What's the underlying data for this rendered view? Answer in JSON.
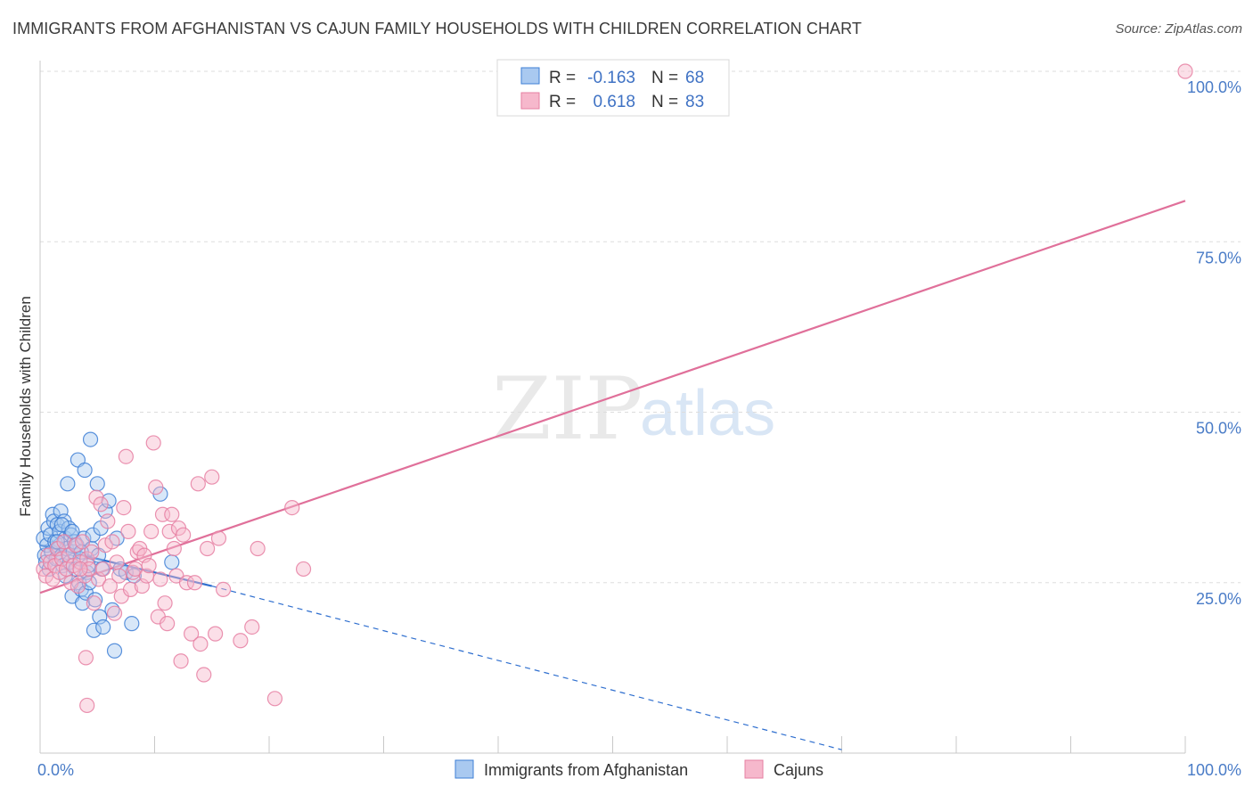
{
  "title": "IMMIGRANTS FROM AFGHANISTAN VS CAJUN FAMILY HOUSEHOLDS WITH CHILDREN CORRELATION CHART",
  "source": "Source: ZipAtlas.com",
  "watermark": {
    "zip": "ZIP",
    "atlas": "atlas"
  },
  "colors": {
    "blue_fill": "#a9c9f0",
    "blue_stroke": "#3e7fd6",
    "blue_line": "#2f6fcf",
    "pink_fill": "#f6b8cc",
    "pink_stroke": "#e67fa2",
    "pink_line": "#e0709a",
    "grid": "#dddddd",
    "tick": "#4a7cc7"
  },
  "legend": {
    "rows": [
      {
        "r_label": "R =",
        "r_value": "-0.163",
        "n_label": "N =",
        "n_value": "68"
      },
      {
        "r_label": "R =",
        "r_value": "0.618",
        "n_label": "N =",
        "n_value": "83"
      }
    ]
  },
  "chart_data": {
    "type": "scatter",
    "title": "IMMIGRANTS FROM AFGHANISTAN VS CAJUN FAMILY HOUSEHOLDS WITH CHILDREN CORRELATION CHART",
    "xlabel": "",
    "ylabel": "Family Households with Children",
    "xlim": [
      0,
      100
    ],
    "ylim": [
      0,
      100
    ],
    "x_tick_labels": [
      "0.0%",
      "100.0%"
    ],
    "y_ticks": [
      25,
      50,
      75,
      100
    ],
    "y_tick_labels": [
      "25.0%",
      "50.0%",
      "75.0%",
      "100.0%"
    ],
    "grid": true,
    "series": [
      {
        "name": "Immigrants from Afghanistan",
        "r": -0.163,
        "n": 68,
        "trend": {
          "x0": 0,
          "y0": 30.5,
          "x1": 15,
          "y1": 24.5,
          "dashed_to_x": 70,
          "dashed_to_y": 0.5
        },
        "points": [
          [
            0.3,
            31.5
          ],
          [
            0.4,
            29
          ],
          [
            0.5,
            28
          ],
          [
            0.6,
            30.5
          ],
          [
            0.7,
            33
          ],
          [
            0.8,
            27
          ],
          [
            0.9,
            32
          ],
          [
            1.0,
            29.5
          ],
          [
            1.1,
            35
          ],
          [
            1.2,
            34
          ],
          [
            1.3,
            31
          ],
          [
            1.4,
            28.5
          ],
          [
            1.5,
            33.5
          ],
          [
            1.6,
            30
          ],
          [
            1.7,
            32.5
          ],
          [
            1.8,
            35.5
          ],
          [
            1.9,
            29
          ],
          [
            2.0,
            27.5
          ],
          [
            2.1,
            34
          ],
          [
            2.2,
            31.5
          ],
          [
            2.3,
            30
          ],
          [
            2.4,
            39.5
          ],
          [
            2.5,
            33
          ],
          [
            2.6,
            28
          ],
          [
            2.7,
            32
          ],
          [
            2.8,
            23
          ],
          [
            2.9,
            29.5
          ],
          [
            3.0,
            31
          ],
          [
            3.1,
            27
          ],
          [
            3.2,
            30.5
          ],
          [
            3.3,
            43
          ],
          [
            3.4,
            25
          ],
          [
            3.5,
            28.5
          ],
          [
            3.6,
            24
          ],
          [
            3.7,
            22
          ],
          [
            3.8,
            31.5
          ],
          [
            3.9,
            41.5
          ],
          [
            4.0,
            23.5
          ],
          [
            4.1,
            26.5
          ],
          [
            4.2,
            27.5
          ],
          [
            4.3,
            25
          ],
          [
            4.4,
            46
          ],
          [
            4.5,
            30
          ],
          [
            4.6,
            32
          ],
          [
            4.7,
            18
          ],
          [
            4.8,
            22.5
          ],
          [
            5.0,
            39.5
          ],
          [
            5.1,
            29
          ],
          [
            5.2,
            20
          ],
          [
            5.3,
            33
          ],
          [
            5.4,
            27
          ],
          [
            5.5,
            18.5
          ],
          [
            5.7,
            35.5
          ],
          [
            6.0,
            37
          ],
          [
            6.3,
            21
          ],
          [
            6.5,
            15
          ],
          [
            6.7,
            31.5
          ],
          [
            7.0,
            27
          ],
          [
            7.5,
            26.5
          ],
          [
            8.0,
            19
          ],
          [
            8.2,
            26
          ],
          [
            10.5,
            38
          ],
          [
            11.5,
            28
          ],
          [
            1.9,
            33.5
          ],
          [
            2.2,
            26
          ],
          [
            3.6,
            29.5
          ],
          [
            2.8,
            32.5
          ],
          [
            1.5,
            31
          ]
        ]
      },
      {
        "name": "Cajuns",
        "r": 0.618,
        "n": 83,
        "trend": {
          "x0": 0,
          "y0": 23.5,
          "x1": 100,
          "y1": 81
        },
        "points": [
          [
            0.3,
            27
          ],
          [
            0.5,
            26
          ],
          [
            0.7,
            29
          ],
          [
            0.9,
            28
          ],
          [
            1.1,
            25.5
          ],
          [
            1.3,
            27.5
          ],
          [
            1.5,
            30
          ],
          [
            1.7,
            26.5
          ],
          [
            1.9,
            28.5
          ],
          [
            2.1,
            31
          ],
          [
            2.3,
            27
          ],
          [
            2.5,
            29
          ],
          [
            2.7,
            25
          ],
          [
            2.9,
            27.5
          ],
          [
            3.1,
            30.5
          ],
          [
            3.3,
            24.5
          ],
          [
            3.5,
            28
          ],
          [
            3.7,
            31
          ],
          [
            3.9,
            26
          ],
          [
            4.1,
            28.5
          ],
          [
            4.3,
            27
          ],
          [
            4.5,
            29.5
          ],
          [
            4.7,
            22
          ],
          [
            4.9,
            37.5
          ],
          [
            5.1,
            25.5
          ],
          [
            5.3,
            36.5
          ],
          [
            5.5,
            27
          ],
          [
            5.7,
            30.5
          ],
          [
            5.9,
            34
          ],
          [
            6.1,
            24.5
          ],
          [
            6.3,
            31
          ],
          [
            6.5,
            20.5
          ],
          [
            6.7,
            28
          ],
          [
            6.9,
            26
          ],
          [
            7.1,
            23
          ],
          [
            7.3,
            36
          ],
          [
            7.5,
            43.5
          ],
          [
            7.7,
            32.5
          ],
          [
            7.9,
            24
          ],
          [
            8.1,
            26.5
          ],
          [
            8.3,
            27
          ],
          [
            8.5,
            29.5
          ],
          [
            8.7,
            30
          ],
          [
            8.9,
            24.5
          ],
          [
            9.1,
            29
          ],
          [
            9.3,
            26
          ],
          [
            9.5,
            27.5
          ],
          [
            9.7,
            32.5
          ],
          [
            9.9,
            45.5
          ],
          [
            10.1,
            39
          ],
          [
            10.3,
            20
          ],
          [
            10.5,
            25.5
          ],
          [
            10.7,
            35
          ],
          [
            10.9,
            22
          ],
          [
            11.1,
            19
          ],
          [
            11.3,
            32.5
          ],
          [
            11.5,
            35
          ],
          [
            11.7,
            30
          ],
          [
            11.9,
            26
          ],
          [
            12.1,
            33
          ],
          [
            12.3,
            13.5
          ],
          [
            12.5,
            32
          ],
          [
            12.8,
            25
          ],
          [
            13.2,
            17.5
          ],
          [
            13.5,
            25
          ],
          [
            13.8,
            39.5
          ],
          [
            14.0,
            16
          ],
          [
            14.3,
            11.5
          ],
          [
            14.6,
            30
          ],
          [
            15.0,
            40.5
          ],
          [
            15.3,
            17.5
          ],
          [
            15.6,
            31.5
          ],
          [
            16.0,
            24
          ],
          [
            17.5,
            16.5
          ],
          [
            18.5,
            18.5
          ],
          [
            19.0,
            30
          ],
          [
            20.5,
            8
          ],
          [
            22.0,
            36
          ],
          [
            23.0,
            27
          ],
          [
            4.0,
            14
          ],
          [
            4.1,
            7
          ],
          [
            3.5,
            27
          ],
          [
            100,
            100
          ]
        ]
      }
    ]
  },
  "bottom_legend": [
    {
      "label": "Immigrants from Afghanistan"
    },
    {
      "label": "Cajuns"
    }
  ]
}
